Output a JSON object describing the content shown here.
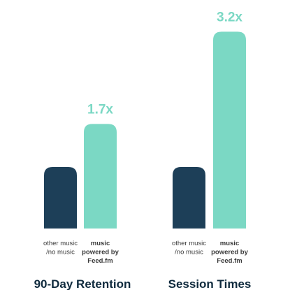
{
  "colors": {
    "baseline_bar": "#1d3f58",
    "feed_bar": "#7bd8c4",
    "multiplier_text": "#7bd8c4",
    "axis_text": "#3a3a3a",
    "title_text": "#0f2a3d"
  },
  "chart_data": [
    {
      "type": "bar",
      "title": "90-Day Retention",
      "categories": [
        [
          "other music",
          "/no music"
        ],
        [
          "music",
          "powered by",
          "Feed.fm"
        ]
      ],
      "values": [
        1.0,
        1.7
      ],
      "annotation": "1.7x",
      "ylim": [
        0,
        3.5
      ],
      "grid": false
    },
    {
      "type": "bar",
      "title": "Session Times",
      "categories": [
        [
          "other music",
          "/no music"
        ],
        [
          "music",
          "powered by",
          "Feed.fm"
        ]
      ],
      "values": [
        1.0,
        3.2
      ],
      "annotation": "3.2x",
      "ylim": [
        0,
        3.5
      ],
      "grid": false
    }
  ]
}
